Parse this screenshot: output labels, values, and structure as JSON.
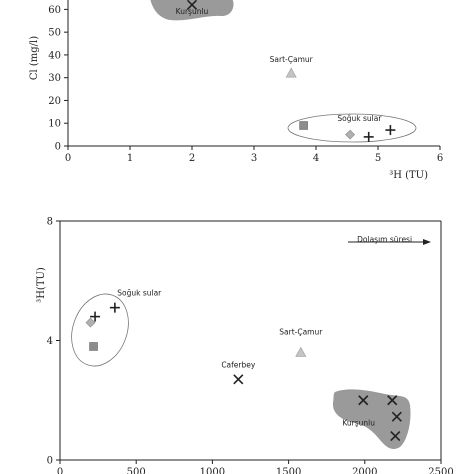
{
  "colors": {
    "axis": "#222222",
    "blob": "#9a9a9a",
    "square": "#8c8c8c",
    "triangle": "#c4c4c4",
    "diamond": "#b0b0b0",
    "ellipse": "#777777"
  },
  "chart_data": [
    {
      "type": "scatter",
      "xlabel": "³H (TU)",
      "ylabel": "Cl (mg/l)",
      "xlim": [
        0,
        6
      ],
      "ylim": [
        0,
        65
      ],
      "xticks": [
        0,
        1,
        2,
        3,
        4,
        5,
        6
      ],
      "yticks": [
        0,
        10,
        20,
        30,
        40,
        50,
        60
      ],
      "grid": false,
      "points": [
        {
          "x": 2.0,
          "y": 62,
          "marker": "x"
        },
        {
          "x": 3.6,
          "y": 32,
          "marker": "triangle"
        },
        {
          "x": 3.8,
          "y": 9,
          "marker": "square"
        },
        {
          "x": 4.55,
          "y": 5,
          "marker": "diamond"
        },
        {
          "x": 4.85,
          "y": 4,
          "marker": "plus"
        },
        {
          "x": 5.2,
          "y": 7,
          "marker": "plus"
        }
      ],
      "annotations": [
        {
          "text": "Kurşunlu",
          "x": 2.0,
          "y": 58
        },
        {
          "text": "Sart-Çamur",
          "x": 3.6,
          "y": 37
        },
        {
          "text": "Soğuk sular",
          "x": 4.7,
          "y": 11
        }
      ],
      "groups": [
        {
          "shape": "blob",
          "label": "Kurşunlu"
        },
        {
          "shape": "ellipse",
          "label": "Soğuk sular"
        }
      ]
    },
    {
      "type": "scatter",
      "xlabel": "",
      "ylabel": "³H(TU)",
      "xlim": [
        0,
        2500
      ],
      "ylim": [
        0,
        8
      ],
      "xticks": [
        0,
        500,
        1000,
        1500,
        2000,
        2500
      ],
      "yticks": [
        0,
        4,
        8
      ],
      "grid": false,
      "points": [
        {
          "x": 200,
          "y": 4.6,
          "marker": "diamond"
        },
        {
          "x": 230,
          "y": 4.8,
          "marker": "plus"
        },
        {
          "x": 360,
          "y": 5.1,
          "marker": "plus"
        },
        {
          "x": 220,
          "y": 3.8,
          "marker": "square"
        },
        {
          "x": 1580,
          "y": 3.6,
          "marker": "triangle"
        },
        {
          "x": 1170,
          "y": 2.7,
          "marker": "x"
        },
        {
          "x": 1990,
          "y": 2.0,
          "marker": "x"
        },
        {
          "x": 2180,
          "y": 2.0,
          "marker": "x"
        },
        {
          "x": 2210,
          "y": 1.45,
          "marker": "x"
        },
        {
          "x": 2200,
          "y": 0.8,
          "marker": "x"
        }
      ],
      "annotations": [
        {
          "text": "Soğuk sular",
          "x": 520,
          "y": 5.5
        },
        {
          "text": "Sart-Çamur",
          "x": 1580,
          "y": 4.2
        },
        {
          "text": "Caferbey",
          "x": 1170,
          "y": 3.1
        },
        {
          "text": "Kurşunlu",
          "x": 1960,
          "y": 1.15
        },
        {
          "text": "Dolaşım süresi",
          "x": 2130,
          "y": 7.3
        }
      ],
      "groups": [
        {
          "shape": "ellipse",
          "label": "Soğuk sular"
        },
        {
          "shape": "blob",
          "label": "Kurşunlu"
        }
      ],
      "arrow": {
        "label": "Dolaşım süresi",
        "direction": "right"
      }
    }
  ]
}
